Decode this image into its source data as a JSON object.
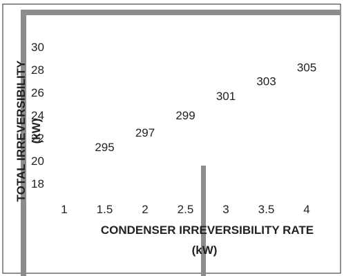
{
  "chart_data": {
    "type": "scatter",
    "title": "",
    "xlabel_line1": "CONDENSER IRREVERSIBILITY RATE",
    "xlabel_line2": "(kW)",
    "ylabel_line1": "TOTAL IRREVERSIBILITY",
    "ylabel_line2": "(kW)",
    "x_ticks": [
      "1",
      "1.5",
      "2",
      "2.5",
      "3",
      "3.5",
      "4"
    ],
    "y_ticks": [
      "18",
      "20",
      "22",
      "24",
      "26",
      "28",
      "30"
    ],
    "xlim": [
      0.5,
      4.5
    ],
    "ylim": [
      16,
      30
    ],
    "grid": false,
    "legend": "none",
    "points": [
      {
        "x": 1.5,
        "y": 21.2,
        "label": "295"
      },
      {
        "x": 2.0,
        "y": 22.5,
        "label": "297"
      },
      {
        "x": 2.5,
        "y": 24.0,
        "label": "299"
      },
      {
        "x": 3.0,
        "y": 25.7,
        "label": "301"
      },
      {
        "x": 3.5,
        "y": 27.0,
        "label": "303"
      },
      {
        "x": 4.0,
        "y": 28.2,
        "label": "305"
      }
    ],
    "colors": {
      "frame": "#222222",
      "gray_bar": "#8c8c8c",
      "text": "#222222"
    }
  }
}
